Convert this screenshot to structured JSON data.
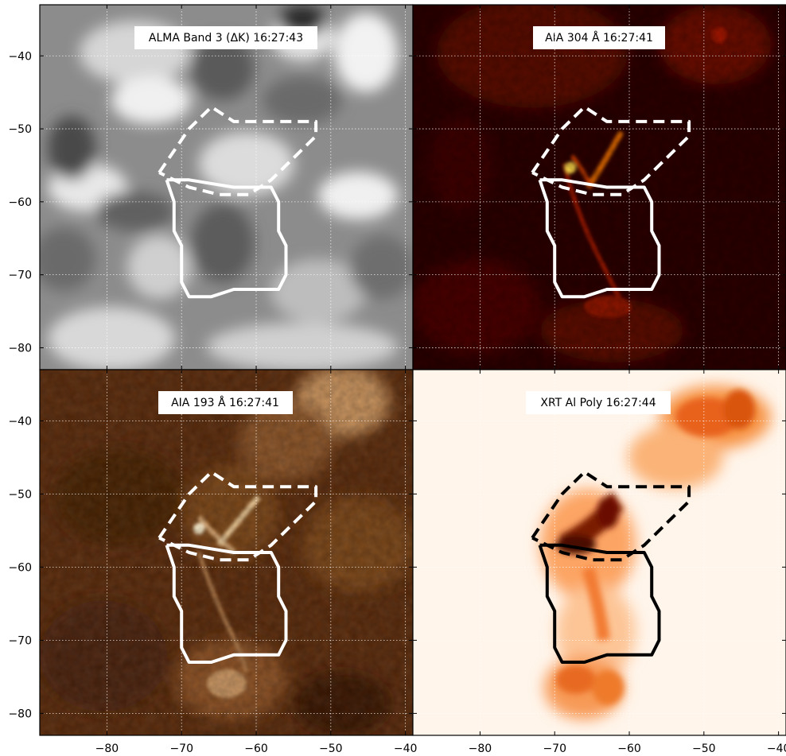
{
  "figure": {
    "colors": {
      "grid": "#ffffff",
      "axis": "#000000",
      "label_bg": "#ffffff"
    }
  },
  "chart_data": [
    {
      "type": "heatmap",
      "title": "ALMA Band 3 (ΔK)  16:27:43",
      "colormap": "gray",
      "xlim": [
        -89,
        -39
      ],
      "ylim": [
        -83,
        -33
      ],
      "xticks": [
        -80,
        -70,
        -60,
        -50,
        -40
      ],
      "yticks": [
        -40,
        -50,
        -60,
        -70,
        -80
      ],
      "grid": true,
      "contour_color": "#ffffff"
    },
    {
      "type": "heatmap",
      "title": "AIA 304 Å  16:27:41",
      "colormap": "red",
      "xlim": [
        -89,
        -39
      ],
      "ylim": [
        -83,
        -33
      ],
      "xticks": [
        -80,
        -70,
        -60,
        -50,
        -40
      ],
      "yticks": [
        -40,
        -50,
        -60,
        -70,
        -80
      ],
      "grid": true,
      "contour_color": "#ffffff"
    },
    {
      "type": "heatmap",
      "title": "AIA 193 Å  16:27:41",
      "colormap": "copper",
      "xlim": [
        -89,
        -39
      ],
      "ylim": [
        -83,
        -33
      ],
      "xticks": [
        -80,
        -70,
        -60,
        -50,
        -40
      ],
      "yticks": [
        -40,
        -50,
        -60,
        -70,
        -80
      ],
      "grid": true,
      "contour_color": "#ffffff"
    },
    {
      "type": "heatmap",
      "title": "XRT Al Poly  16:27:44",
      "colormap": "oranges",
      "xlim": [
        -89,
        -39
      ],
      "ylim": [
        -83,
        -33
      ],
      "xticks": [
        -80,
        -70,
        -60,
        -50,
        -40
      ],
      "yticks": [
        -40,
        -50,
        -60,
        -70,
        -80
      ],
      "grid": true,
      "contour_color": "#000000"
    }
  ],
  "contours": {
    "dashed_region": [
      [
        -73,
        -56
      ],
      [
        -69,
        -50
      ],
      [
        -66,
        -47
      ],
      [
        -63,
        -49
      ],
      [
        -60,
        -49
      ],
      [
        -52,
        -49
      ],
      [
        -52,
        -51
      ],
      [
        -55,
        -54
      ],
      [
        -58,
        -57
      ],
      [
        -61,
        -59
      ],
      [
        -65,
        -59
      ],
      [
        -69,
        -58
      ],
      [
        -73,
        -56
      ]
    ],
    "solid_region": [
      [
        -72,
        -57
      ],
      [
        -69,
        -57
      ],
      [
        -63,
        -58
      ],
      [
        -58,
        -58
      ],
      [
        -57,
        -60
      ],
      [
        -57,
        -64
      ],
      [
        -56,
        -66
      ],
      [
        -56,
        -70
      ],
      [
        -57,
        -72
      ],
      [
        -60,
        -72
      ],
      [
        -63,
        -72
      ],
      [
        -66,
        -73
      ],
      [
        -69,
        -73
      ],
      [
        -70,
        -71
      ],
      [
        -70,
        -66
      ],
      [
        -71,
        -64
      ],
      [
        -71,
        -60
      ],
      [
        -72,
        -57
      ]
    ]
  }
}
